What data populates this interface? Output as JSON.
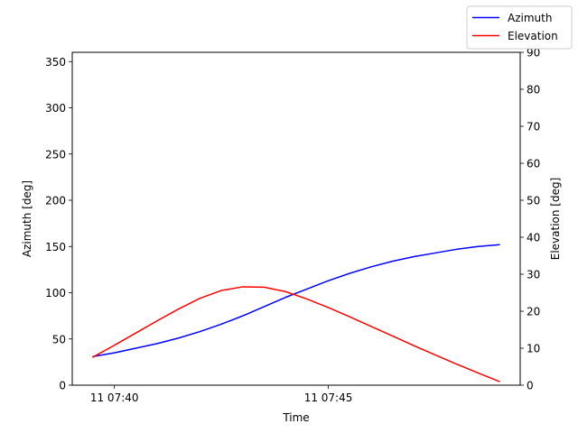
{
  "chart_data": {
    "type": "line",
    "xlabel": "Time",
    "ylabel_left": "Azimuth [deg]",
    "ylabel_right": "Elevation [deg]",
    "xlim": [
      "11 07:39:30",
      "11 07:49:00"
    ],
    "ylim_left": [
      0,
      360
    ],
    "ylim_right": [
      0,
      90
    ],
    "x_ticks": [
      {
        "time": "11 07:40",
        "label": "11 07:40"
      },
      {
        "time": "11 07:45",
        "label": "11 07:45"
      }
    ],
    "y_ticks_left": [
      0,
      50,
      100,
      150,
      200,
      250,
      300,
      350
    ],
    "y_ticks_right": [
      0,
      10,
      20,
      30,
      40,
      50,
      60,
      70,
      80,
      90
    ],
    "grid": false,
    "legend": {
      "position": "top-right",
      "entries": [
        "Azimuth",
        "Elevation"
      ]
    },
    "x": [
      "11 07:39:30",
      "11 07:40:00",
      "11 07:40:30",
      "11 07:41:00",
      "11 07:41:30",
      "11 07:42:00",
      "11 07:42:30",
      "11 07:43:00",
      "11 07:43:30",
      "11 07:44:00",
      "11 07:44:30",
      "11 07:45:00",
      "11 07:45:30",
      "11 07:46:00",
      "11 07:46:30",
      "11 07:47:00",
      "11 07:47:30",
      "11 07:48:00",
      "11 07:48:30",
      "11 07:49:00"
    ],
    "series": [
      {
        "name": "Azimuth",
        "axis": "left",
        "color": "#0000ff",
        "values": [
          31,
          35,
          40,
          45,
          51,
          58,
          66,
          75,
          85,
          95,
          104,
          113,
          121,
          128,
          134,
          139,
          143,
          147,
          150,
          152
        ]
      },
      {
        "name": "Elevation",
        "axis": "right",
        "color": "#ff0000",
        "values": [
          7.6,
          10.8,
          14.1,
          17.4,
          20.6,
          23.5,
          25.6,
          26.6,
          26.5,
          25.3,
          23.3,
          21.0,
          18.5,
          15.9,
          13.3,
          10.7,
          8.2,
          5.7,
          3.3,
          1.0
        ]
      }
    ]
  }
}
